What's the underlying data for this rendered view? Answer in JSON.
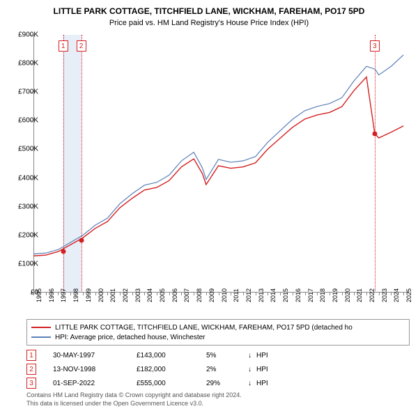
{
  "title": "LITTLE PARK COTTAGE, TITCHFIELD LANE, WICKHAM, FAREHAM, PO17 5PD",
  "subtitle": "Price paid vs. HM Land Registry's House Price Index (HPI)",
  "chart": {
    "type": "line",
    "x_range": [
      1995,
      2025.5
    ],
    "y_range": [
      0,
      900000
    ],
    "y_ticks": [
      0,
      100000,
      200000,
      300000,
      400000,
      500000,
      600000,
      700000,
      800000,
      900000
    ],
    "y_tick_labels": [
      "£0",
      "£100K",
      "£200K",
      "£300K",
      "£400K",
      "£500K",
      "£600K",
      "£700K",
      "£800K",
      "£900K"
    ],
    "x_ticks": [
      1995,
      1996,
      1997,
      1998,
      1999,
      2000,
      2001,
      2002,
      2003,
      2004,
      2005,
      2006,
      2007,
      2008,
      2009,
      2010,
      2011,
      2012,
      2013,
      2014,
      2015,
      2016,
      2017,
      2018,
      2019,
      2020,
      2021,
      2022,
      2023,
      2024,
      2025
    ],
    "background_color": "#ffffff",
    "axis_color": "#888888",
    "highlight_band": {
      "x_start": 1997.4,
      "x_end": 1998.9,
      "color": "#e8eef7"
    },
    "series": [
      {
        "id": "hpi",
        "label": "HPI: Average price, detached house, Winchester",
        "color": "#5b7fb8",
        "width": 1.2,
        "points": [
          [
            1995,
            135000
          ],
          [
            1996,
            138000
          ],
          [
            1997,
            150000
          ],
          [
            1998,
            175000
          ],
          [
            1999,
            200000
          ],
          [
            2000,
            235000
          ],
          [
            2001,
            260000
          ],
          [
            2002,
            310000
          ],
          [
            2003,
            345000
          ],
          [
            2004,
            375000
          ],
          [
            2005,
            385000
          ],
          [
            2006,
            410000
          ],
          [
            2007,
            460000
          ],
          [
            2008,
            490000
          ],
          [
            2008.7,
            435000
          ],
          [
            2009,
            395000
          ],
          [
            2009.5,
            430000
          ],
          [
            2010,
            465000
          ],
          [
            2011,
            455000
          ],
          [
            2012,
            460000
          ],
          [
            2013,
            475000
          ],
          [
            2014,
            525000
          ],
          [
            2015,
            565000
          ],
          [
            2016,
            605000
          ],
          [
            2017,
            635000
          ],
          [
            2018,
            650000
          ],
          [
            2019,
            660000
          ],
          [
            2020,
            680000
          ],
          [
            2021,
            740000
          ],
          [
            2022,
            790000
          ],
          [
            2022.7,
            780000
          ],
          [
            2023,
            760000
          ],
          [
            2024,
            790000
          ],
          [
            2025,
            830000
          ]
        ]
      },
      {
        "id": "property",
        "label": "LITTLE PARK COTTAGE, TITCHFIELD LANE, WICKHAM, FAREHAM, PO17 5PD (detached ho",
        "color": "#d42020",
        "width": 1.4,
        "points": [
          [
            1995,
            128000
          ],
          [
            1996,
            131000
          ],
          [
            1997,
            143000
          ],
          [
            1998,
            167000
          ],
          [
            1999,
            191000
          ],
          [
            2000,
            224000
          ],
          [
            2001,
            248000
          ],
          [
            2002,
            296000
          ],
          [
            2003,
            329000
          ],
          [
            2004,
            358000
          ],
          [
            2005,
            367000
          ],
          [
            2006,
            391000
          ],
          [
            2007,
            439000
          ],
          [
            2008,
            467000
          ],
          [
            2008.7,
            415000
          ],
          [
            2009,
            377000
          ],
          [
            2009.5,
            410000
          ],
          [
            2010,
            443000
          ],
          [
            2011,
            434000
          ],
          [
            2012,
            439000
          ],
          [
            2013,
            453000
          ],
          [
            2014,
            501000
          ],
          [
            2015,
            539000
          ],
          [
            2016,
            577000
          ],
          [
            2017,
            606000
          ],
          [
            2018,
            620000
          ],
          [
            2019,
            629000
          ],
          [
            2020,
            649000
          ],
          [
            2021,
            706000
          ],
          [
            2022,
            753000
          ],
          [
            2022.67,
            555000
          ],
          [
            2023,
            540000
          ],
          [
            2024,
            560000
          ],
          [
            2025,
            582000
          ]
        ]
      }
    ],
    "markers": [
      {
        "n": "1",
        "x": 1997.41,
        "y": 143000,
        "color": "#d42020"
      },
      {
        "n": "2",
        "x": 1998.87,
        "y": 182000,
        "color": "#d42020"
      },
      {
        "n": "3",
        "x": 2022.67,
        "y": 555000,
        "color": "#d42020"
      }
    ]
  },
  "legend": [
    {
      "color": "#d42020",
      "label": "LITTLE PARK COTTAGE, TITCHFIELD LANE, WICKHAM, FAREHAM, PO17 5PD (detached ho"
    },
    {
      "color": "#5b7fb8",
      "label": "HPI: Average price, detached house, Winchester"
    }
  ],
  "sales": [
    {
      "n": "1",
      "color": "#d42020",
      "date": "30-MAY-1997",
      "price": "£143,000",
      "pct": "5%",
      "arrow": "↓",
      "ref": "HPI"
    },
    {
      "n": "2",
      "color": "#d42020",
      "date": "13-NOV-1998",
      "price": "£182,000",
      "pct": "2%",
      "arrow": "↓",
      "ref": "HPI"
    },
    {
      "n": "3",
      "color": "#d42020",
      "date": "01-SEP-2022",
      "price": "£555,000",
      "pct": "29%",
      "arrow": "↓",
      "ref": "HPI"
    }
  ],
  "footnote_line1": "Contains HM Land Registry data © Crown copyright and database right 2024.",
  "footnote_line2": "This data is licensed under the Open Government Licence v3.0."
}
